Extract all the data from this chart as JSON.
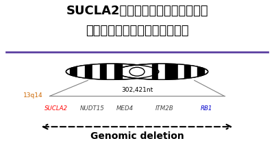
{
  "title_line1": "SUCLA2欠失がんという疾患概念を",
  "title_line2": "確立し、新しい抗がん薬を開発",
  "divider_color": "#5b3fa0",
  "chromosome_label": "13q14",
  "region_size": "302,421nt",
  "genes": [
    "SUCLA2",
    "NUDT15",
    "MED4",
    "ITM2B",
    "RB1"
  ],
  "gene_colors": [
    "#ff0000",
    "#444444",
    "#444444",
    "#444444",
    "#0000cc"
  ],
  "arrow_label": "Genomic deletion",
  "bg_color": "#ffffff",
  "title_fontsize": 13.0
}
